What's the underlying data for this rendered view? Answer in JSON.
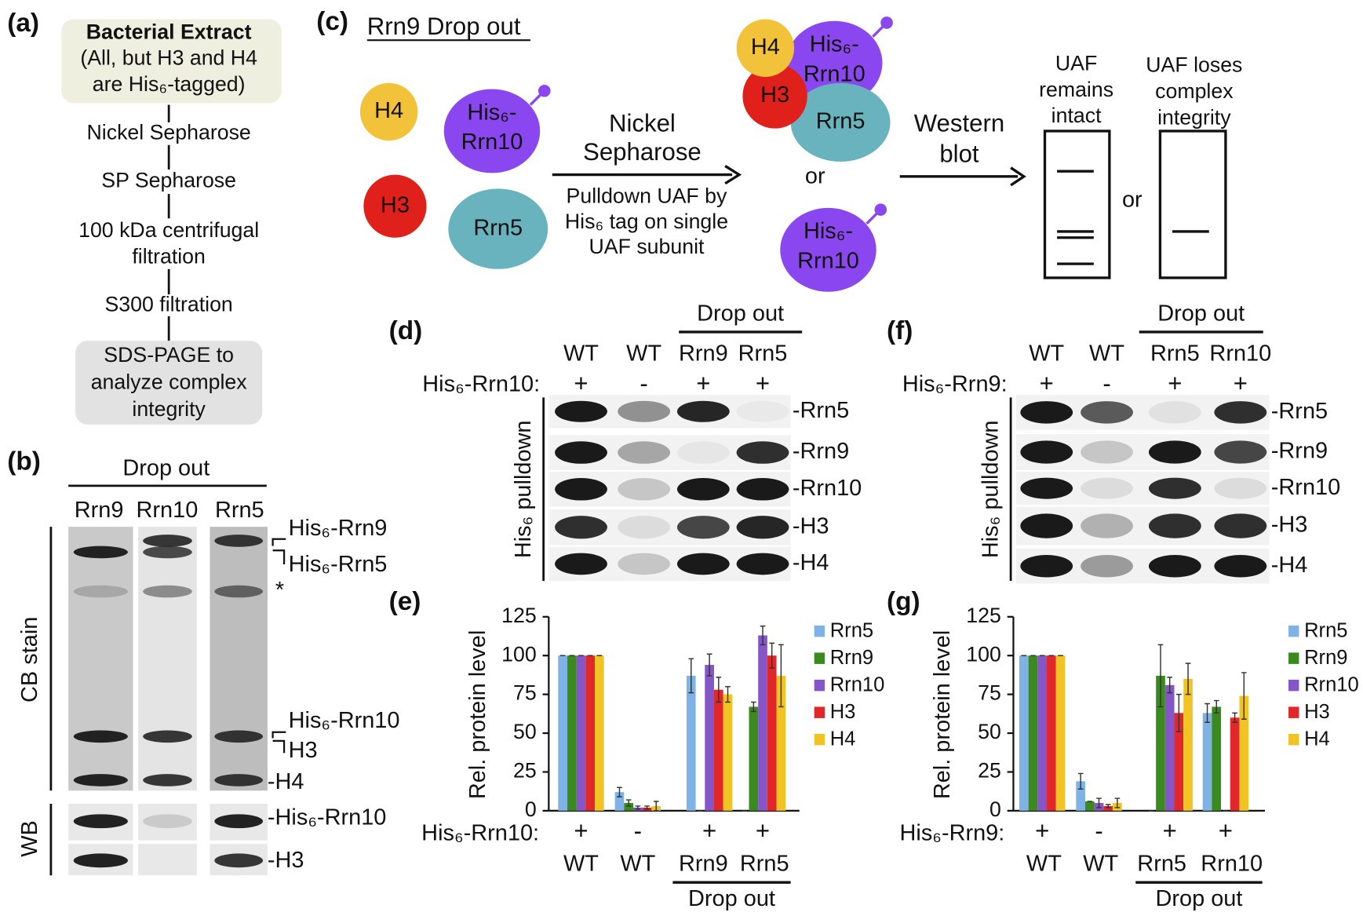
{
  "panel_labels": [
    "(a)",
    "(b)",
    "(c)",
    "(d)",
    "(e)",
    "(f)",
    "(g)"
  ],
  "panel_a": {
    "title": "Bacterial Extract",
    "subtitle": [
      "(All, but H3 and H4",
      "are His₆-tagged)"
    ],
    "steps": [
      [
        "Nickel Sepharose"
      ],
      [
        "SP Sepharose"
      ],
      [
        "100 kDa centrifugal",
        "filtration"
      ],
      [
        "S300 filtration"
      ]
    ],
    "final": [
      "SDS-PAGE to",
      "analyze complex",
      "integrity"
    ]
  },
  "panel_b": {
    "header": "Drop out",
    "lanes": [
      "Rrn9",
      "Rrn10",
      "Rrn5"
    ],
    "stain_label": "CB stain",
    "wb_label": "WB",
    "band_labels": [
      "His₆-Rrn9",
      "His₆-Rrn5",
      "*",
      "His₆-Rrn10",
      "H3",
      "-H4"
    ],
    "wb_band_labels": [
      "-His₆-Rrn10",
      "-H3"
    ]
  },
  "panel_c": {
    "title": "Rrn9 Drop out",
    "h4": "H4",
    "rrn10": [
      "His₆-",
      "Rrn10"
    ],
    "h3": "H3",
    "rrn5": "Rrn5",
    "step1": [
      "Nickel",
      "Sepharose"
    ],
    "step1_note": [
      "Pulldown UAF by",
      "His₆ tag on single",
      "UAF subunit"
    ],
    "or": "or",
    "step2": [
      "Western",
      "blot"
    ],
    "outcome1": [
      "UAF",
      "remains",
      "intact"
    ],
    "outcome2": [
      "UAF loses",
      "complex",
      "integrity"
    ]
  },
  "panel_d": {
    "header": "Drop out",
    "lanes": [
      "WT",
      "WT",
      "Rrn9",
      "Rrn5"
    ],
    "bait": "His₆-Rrn10:",
    "signs": [
      "+",
      "-",
      "+",
      "+"
    ],
    "side_label": "His₆ pulldown",
    "bands": [
      "-Rrn5",
      "-Rrn9",
      "-Rrn10",
      "-H3",
      "-H4"
    ]
  },
  "panel_f": {
    "header": "Drop out",
    "lanes": [
      "WT",
      "WT",
      "Rrn5",
      "Rrn10"
    ],
    "bait": "His₆-Rrn9:",
    "signs": [
      "+",
      "-",
      "+",
      "+"
    ],
    "side_label": "His₆ pulldown",
    "bands": [
      "-Rrn5",
      "-Rrn9",
      "-Rrn10",
      "-H3",
      "-H4"
    ]
  },
  "chart_data": [
    {
      "type": "bar",
      "ylabel": "Rel. protein level",
      "categories": [
        "WT",
        "WT",
        "Rrn9",
        "Rrn5"
      ],
      "bait": "His₆-Rrn10:",
      "signs": [
        "+",
        "-",
        "+",
        "+"
      ],
      "group_label": "Drop out",
      "ylim": [
        0,
        125
      ],
      "yticks": [
        0,
        25,
        50,
        75,
        100,
        125
      ],
      "series": [
        {
          "name": "Rrn5",
          "color": "#7fb3e6",
          "values": [
            100,
            12,
            87,
            0
          ],
          "errors": [
            0,
            3,
            11,
            0
          ]
        },
        {
          "name": "Rrn9",
          "color": "#3b8a1f",
          "values": [
            100,
            5,
            0,
            67
          ],
          "errors": [
            0,
            2,
            0,
            3
          ]
        },
        {
          "name": "Rrn10",
          "color": "#8456c8",
          "values": [
            100,
            2,
            94,
            113
          ],
          "errors": [
            0,
            1,
            7,
            6
          ]
        },
        {
          "name": "H3",
          "color": "#e0282a",
          "values": [
            100,
            2,
            78,
            100
          ],
          "errors": [
            0,
            1,
            8,
            8
          ]
        },
        {
          "name": "H4",
          "color": "#f2c324",
          "values": [
            100,
            3,
            75,
            87
          ],
          "errors": [
            0,
            3,
            5,
            20
          ]
        }
      ]
    },
    {
      "type": "bar",
      "ylabel": "Rel. protein level",
      "categories": [
        "WT",
        "WT",
        "Rrn5",
        "Rrn10"
      ],
      "bait": "His₆-Rrn9:",
      "signs": [
        "+",
        "-",
        "+",
        "+"
      ],
      "group_label": "Drop out",
      "ylim": [
        0,
        125
      ],
      "yticks": [
        0,
        25,
        50,
        75,
        100,
        125
      ],
      "series": [
        {
          "name": "Rrn5",
          "color": "#7fb3e6",
          "values": [
            100,
            19,
            0,
            63
          ],
          "errors": [
            0,
            5,
            0,
            6
          ]
        },
        {
          "name": "Rrn9",
          "color": "#3b8a1f",
          "values": [
            100,
            6,
            87,
            67
          ],
          "errors": [
            0,
            0,
            20,
            4
          ]
        },
        {
          "name": "Rrn10",
          "color": "#8456c8",
          "values": [
            100,
            5,
            81,
            0
          ],
          "errors": [
            0,
            3,
            5,
            0
          ]
        },
        {
          "name": "H3",
          "color": "#e0282a",
          "values": [
            100,
            3,
            63,
            60
          ],
          "errors": [
            0,
            1,
            12,
            3
          ]
        },
        {
          "name": "H4",
          "color": "#f2c324",
          "values": [
            100,
            5,
            85,
            74
          ],
          "errors": [
            0,
            3,
            10,
            15
          ]
        }
      ]
    }
  ]
}
